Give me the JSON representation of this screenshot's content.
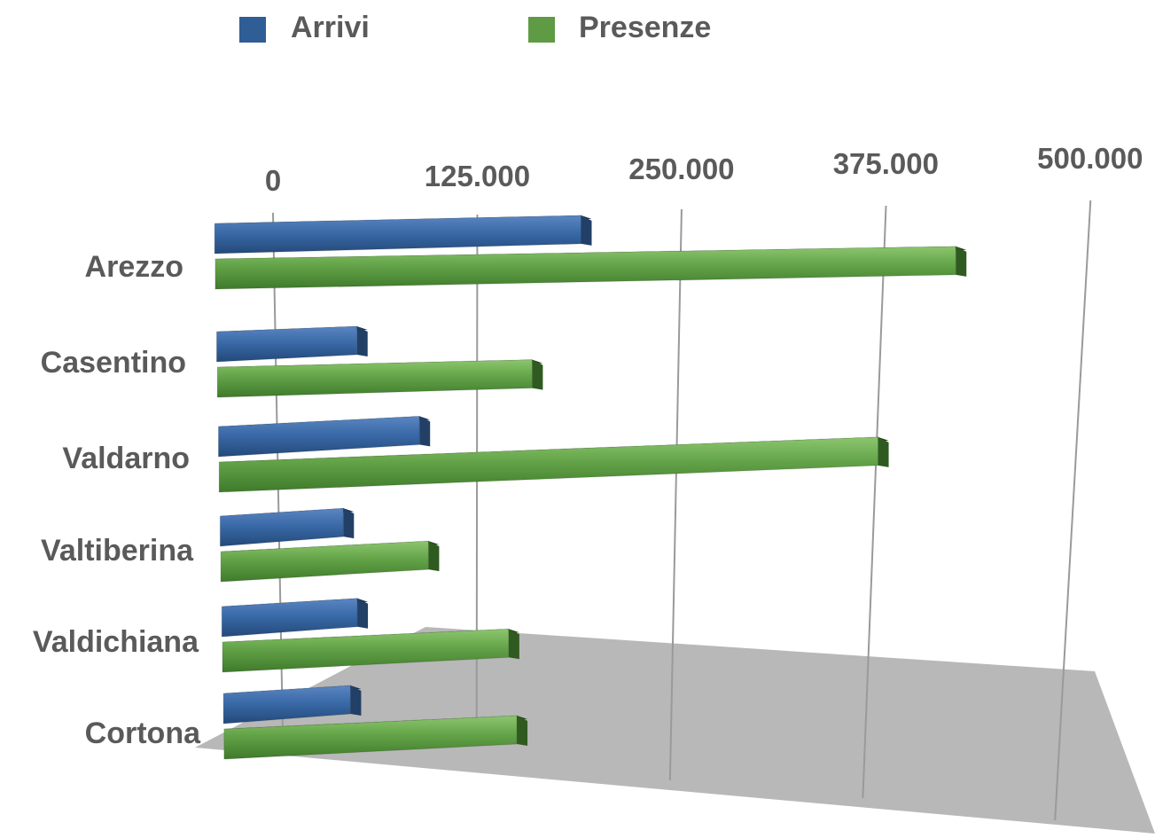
{
  "chart_data": {
    "type": "bar",
    "orientation": "horizontal",
    "style": "3d",
    "categories": [
      "Arezzo",
      "Casentino",
      "Valdarno",
      "Valtiberina",
      "Valdichiana",
      "Cortona"
    ],
    "series": [
      {
        "name": "Arrivi",
        "color": "#2f5d96",
        "values": [
          195000,
          57000,
          95000,
          47000,
          55000,
          50000
        ]
      },
      {
        "name": "Presenze",
        "color": "#5f9a45",
        "values": [
          425000,
          165000,
          380000,
          100000,
          150000,
          155000
        ]
      }
    ],
    "xticks": [
      "0",
      "125.000",
      "250.000",
      "375.000",
      "500.000"
    ],
    "xlim": [
      0,
      500000
    ],
    "grid": true,
    "legend_position": "top"
  }
}
